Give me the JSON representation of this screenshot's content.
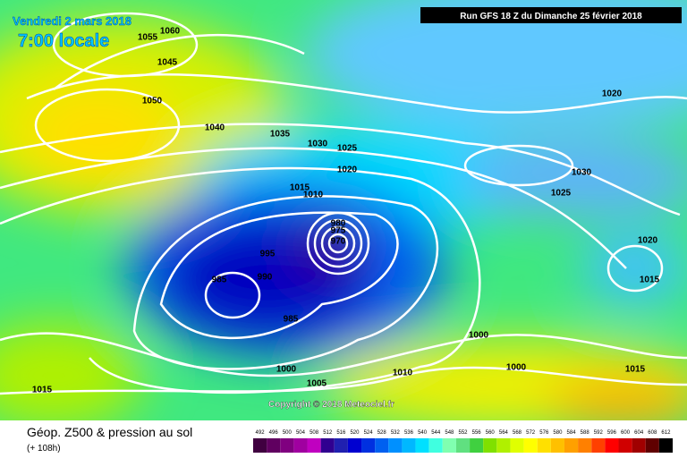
{
  "header": {
    "date": "Vendredi 2 mars 2018",
    "time": "7:00 locale",
    "run": "Run GFS 18 Z du Dimanche 25 février 2018"
  },
  "isobar_labels": [
    1060,
    1055,
    1045,
    1050,
    1040,
    1035,
    1030,
    1025,
    1020,
    1015,
    1010,
    995,
    985,
    990,
    985,
    1000,
    1005,
    1010,
    1015,
    1000,
    1000,
    1015,
    1020,
    1030,
    1025,
    1020,
    1015,
    970,
    975,
    980
  ],
  "copyright": "Copyright © 2018 Meteociel.fr",
  "footer": {
    "title": "Géop. Z500 & pression au sol",
    "lead": "(+ 108h)"
  },
  "scale": {
    "values": [
      492,
      496,
      500,
      504,
      508,
      512,
      516,
      520,
      524,
      528,
      532,
      536,
      540,
      544,
      548,
      552,
      556,
      560,
      564,
      568,
      572,
      576,
      580,
      584,
      588,
      592,
      596,
      600,
      604,
      608,
      612
    ],
    "colors": [
      "#400040",
      "#600060",
      "#800080",
      "#a000a0",
      "#c000c0",
      "#300090",
      "#2020b0",
      "#0000d0",
      "#0030e0",
      "#0060f0",
      "#0090ff",
      "#00b8ff",
      "#00e0ff",
      "#40ffe0",
      "#80ffb0",
      "#60e080",
      "#40d040",
      "#80e000",
      "#b0f000",
      "#e0ff00",
      "#ffff00",
      "#ffe000",
      "#ffc000",
      "#ffa000",
      "#ff8000",
      "#ff4000",
      "#ff0000",
      "#d00000",
      "#a00000",
      "#600000",
      "#000000"
    ]
  }
}
